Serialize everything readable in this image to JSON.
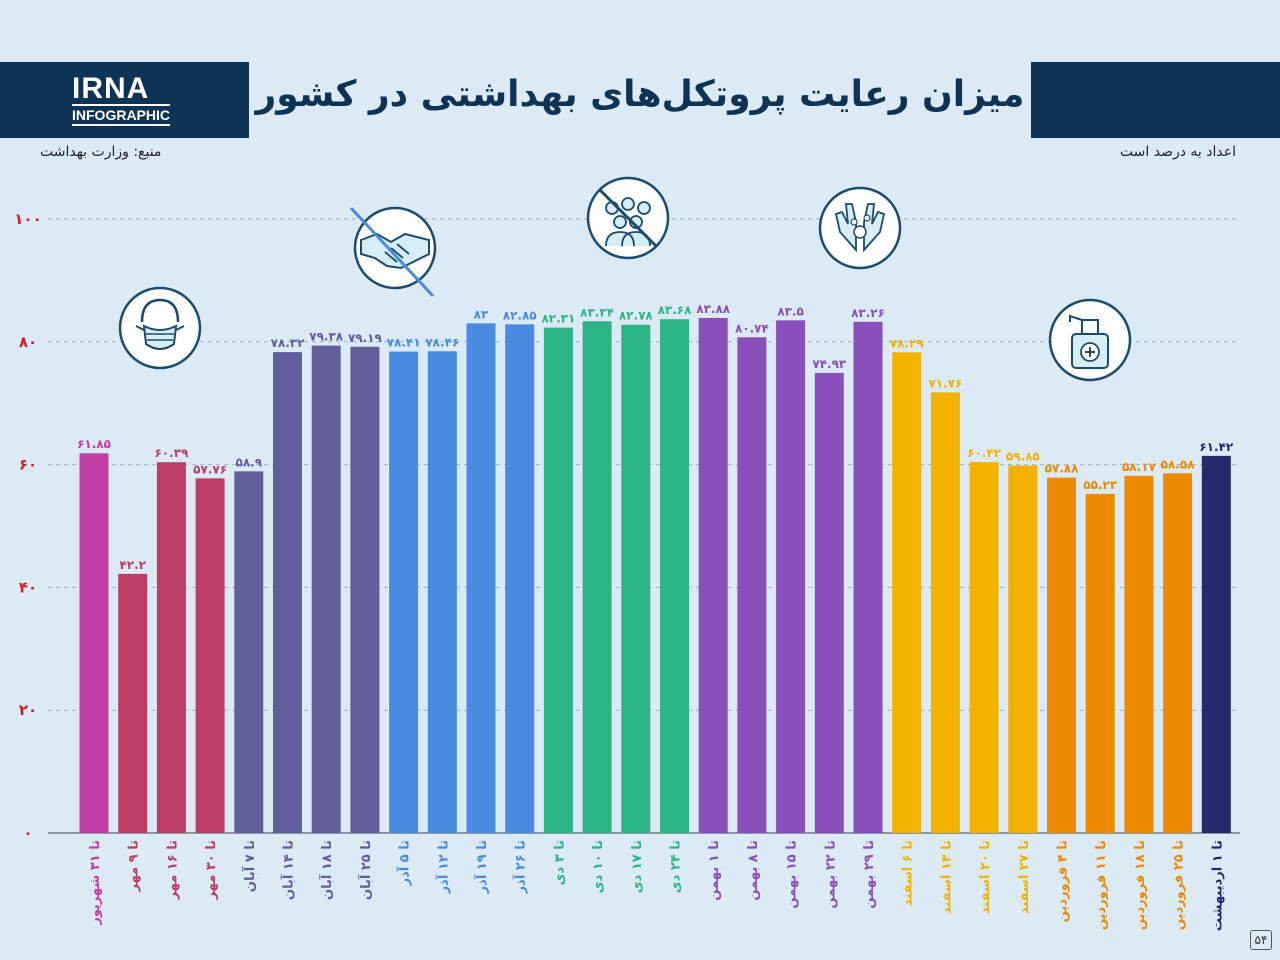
{
  "header": {
    "logo": "IRNA",
    "logo_sub": "INFOGRAPHIC",
    "title": "میزان رعایت پروتکل‌های بهداشتی در کشور",
    "source": "منبع: وزارت بهداشت",
    "unit_note": "اعداد به درصد است",
    "page_number": "۵۴"
  },
  "icons": [
    "mask-icon",
    "no-handshake-icon",
    "no-crowd-icon",
    "hand-washing-icon",
    "sanitizer-icon"
  ],
  "chart_data": {
    "type": "bar",
    "title": "میزان رعایت پروتکل‌های بهداشتی در کشور",
    "ylabel": "",
    "xlabel": "",
    "ylim": [
      0,
      100
    ],
    "yticks": [
      0,
      20,
      40,
      60,
      80,
      100
    ],
    "ytick_labels": [
      "۰",
      "۲۰",
      "۴۰",
      "۶۰",
      "۸۰",
      "۱۰۰"
    ],
    "grid": true,
    "categories": [
      "تا ۳۱ شهریور",
      "تا ۹ مهر",
      "تا ۱۶ مهر",
      "تا ۳۰ مهر",
      "تا ۷ آبان",
      "تا ۱۴ آبان",
      "تا ۱۸ آبان",
      "تا ۲۵ آبان",
      "تا ۵ آذر",
      "تا ۱۲ آذر",
      "تا ۱۹ آذر",
      "تا ۲۶ آذر",
      "تا ۳ دی",
      "تا ۱۰ دی",
      "تا ۱۷ دی",
      "تا ۲۴ دی",
      "تا ۱ بهمن",
      "تا ۸ بهمن",
      "تا ۱۵ بهمن",
      "تا ۲۲ بهمن",
      "تا ۲۹ بهمن",
      "تا ۶ اسفند",
      "تا ۱۳ اسفند",
      "تا ۲۰ اسفند",
      "تا ۲۷ اسفند",
      "تا ۴ فروردین",
      "تا ۱۱ فروردین",
      "تا ۱۸ فروردین",
      "تا ۲۵ فروردین",
      "تا ۱ اردیبهشت"
    ],
    "values": [
      61.85,
      42.2,
      60.39,
      57.76,
      58.9,
      78.32,
      79.38,
      79.19,
      78.41,
      78.46,
      83,
      82.85,
      82.31,
      83.34,
      82.78,
      83.68,
      83.88,
      80.74,
      83.5,
      74.93,
      83.26,
      78.29,
      71.76,
      60.42,
      59.85,
      57.88,
      55.23,
      58.17,
      58.58,
      61.42
    ],
    "value_labels": [
      "۶۱.۸۵",
      "۴۲.۲",
      "۶۰.۳۹",
      "۵۷.۷۶",
      "۵۸.۹",
      "۷۸.۳۲",
      "۷۹.۳۸",
      "۷۹.۱۹",
      "۷۸.۴۱",
      "۷۸.۴۶",
      "۸۳",
      "۸۲.۸۵",
      "۸۲.۳۱",
      "۸۳.۳۴",
      "۸۲.۷۸",
      "۸۳.۶۸",
      "۸۳.۸۸",
      "۸۰.۷۴",
      "۸۳.۵",
      "۷۴.۹۳",
      "۸۳.۲۶",
      "۷۸.۲۹",
      "۷۱.۷۶",
      "۶۰.۴۲",
      "۵۹.۸۵",
      "۵۷.۸۸",
      "۵۵.۲۳",
      "۵۸.۱۷",
      "۵۸.۵۸",
      "۶۱.۴۲"
    ],
    "colors": [
      "#c23fa6",
      "#bd3d67",
      "#bd3d67",
      "#bd3d67",
      "#625d9b",
      "#625d9b",
      "#625d9b",
      "#625d9b",
      "#4a8be2",
      "#4a8be2",
      "#4a8be2",
      "#4a8be2",
      "#2db588",
      "#2db588",
      "#2db588",
      "#2db588",
      "#8a4fbb",
      "#8a4fbb",
      "#8a4fbb",
      "#8a4fbb",
      "#8a4fbb",
      "#f3b200",
      "#f3b200",
      "#f3b200",
      "#f3b200",
      "#ee8a00",
      "#ee8a00",
      "#ee8a00",
      "#ee8a00",
      "#26286e"
    ]
  }
}
